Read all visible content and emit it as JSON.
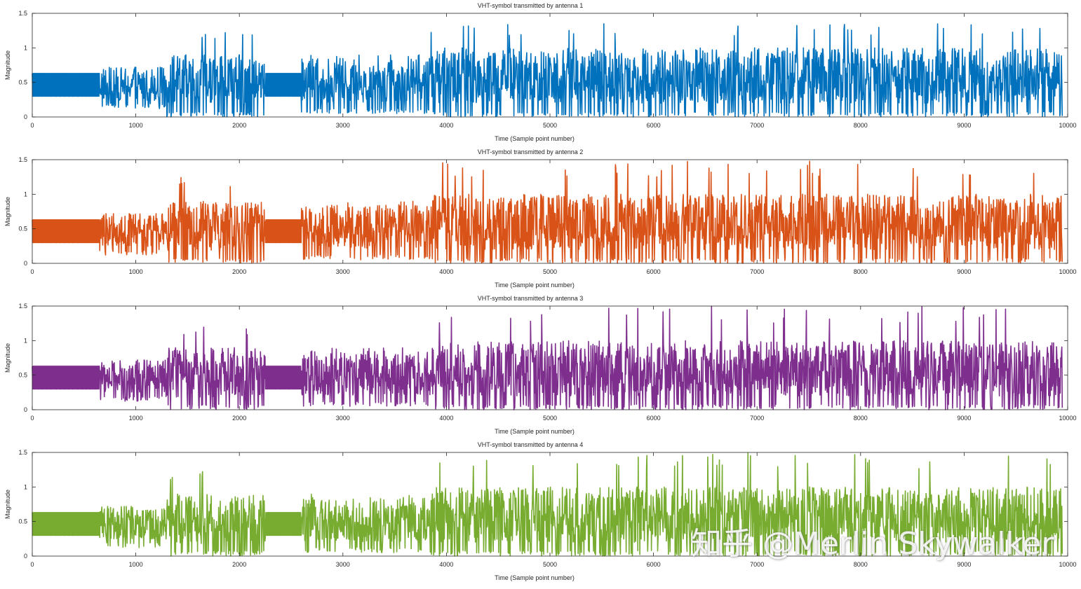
{
  "watermark": "知乎 @Merlin Skywalker",
  "chart_data": [
    {
      "type": "line",
      "title": "VHT-symbol transmitted by antenna 1",
      "xlabel": "Time (Sample point number)",
      "ylabel": "Magnitude",
      "xlim": [
        0,
        10000
      ],
      "ylim": [
        0,
        1.5
      ],
      "xticks": [
        "0",
        "1000",
        "2000",
        "3000",
        "4000",
        "5000",
        "6000",
        "7000",
        "8000",
        "9000",
        "10000"
      ],
      "yticks": [
        "0",
        "0.5",
        "1",
        "1.5"
      ],
      "grid": false,
      "color": "#0072BD",
      "series": [
        {
          "x_range": [
            0,
            9950
          ],
          "segments": [
            {
              "x": [
                0,
                650
              ],
              "style": "periodic",
              "low": 0.3,
              "high": 0.63
            },
            {
              "x": [
                650,
                1300
              ],
              "style": "noise",
              "low": 0.12,
              "high": 0.72,
              "peak": 0.72
            },
            {
              "x": [
                1300,
                2250
              ],
              "style": "noise",
              "low": 0.0,
              "high": 0.9,
              "peak": 1.25
            },
            {
              "x": [
                2250,
                2600
              ],
              "style": "periodic",
              "low": 0.3,
              "high": 0.63
            },
            {
              "x": [
                2600,
                3850
              ],
              "style": "noise",
              "low": 0.05,
              "high": 0.85,
              "peak": 0.9
            },
            {
              "x": [
                3850,
                9950
              ],
              "style": "noise",
              "low": 0.0,
              "high": 1.0,
              "peak": 1.35
            }
          ]
        }
      ]
    },
    {
      "type": "line",
      "title": "VHT-symbol transmitted by antenna 2",
      "xlabel": "Time (Sample point number)",
      "ylabel": "Magnitude",
      "xlim": [
        0,
        10000
      ],
      "ylim": [
        0,
        1.5
      ],
      "xticks": [
        "0",
        "1000",
        "2000",
        "3000",
        "4000",
        "5000",
        "6000",
        "7000",
        "8000",
        "9000",
        "10000"
      ],
      "yticks": [
        "0",
        "0.5",
        "1",
        "1.5"
      ],
      "grid": false,
      "color": "#D95319",
      "series": [
        {
          "x_range": [
            0,
            9950
          ],
          "segments": [
            {
              "x": [
                0,
                650
              ],
              "style": "periodic",
              "low": 0.3,
              "high": 0.63
            },
            {
              "x": [
                650,
                1300
              ],
              "style": "noise",
              "low": 0.12,
              "high": 0.72,
              "peak": 0.72
            },
            {
              "x": [
                1300,
                2250
              ],
              "style": "noise",
              "low": 0.0,
              "high": 0.9,
              "peak": 1.25
            },
            {
              "x": [
                2250,
                2600
              ],
              "style": "periodic",
              "low": 0.3,
              "high": 0.63
            },
            {
              "x": [
                2600,
                3850
              ],
              "style": "noise",
              "low": 0.05,
              "high": 0.85,
              "peak": 0.9
            },
            {
              "x": [
                3850,
                9950
              ],
              "style": "noise",
              "low": 0.0,
              "high": 1.0,
              "peak": 1.48
            }
          ]
        }
      ]
    },
    {
      "type": "line",
      "title": "VHT-symbol transmitted by antenna 3",
      "xlabel": "Time (Sample point number)",
      "ylabel": "Magnitude",
      "xlim": [
        0,
        10000
      ],
      "ylim": [
        0,
        1.5
      ],
      "xticks": [
        "0",
        "1000",
        "2000",
        "3000",
        "4000",
        "5000",
        "6000",
        "7000",
        "8000",
        "9000",
        "10000"
      ],
      "yticks": [
        "0",
        "0.5",
        "1",
        "1.5"
      ],
      "grid": false,
      "color": "#7E2F8E",
      "series": [
        {
          "x_range": [
            0,
            9950
          ],
          "segments": [
            {
              "x": [
                0,
                650
              ],
              "style": "periodic",
              "low": 0.3,
              "high": 0.63
            },
            {
              "x": [
                650,
                1300
              ],
              "style": "noise",
              "low": 0.12,
              "high": 0.72,
              "peak": 0.72
            },
            {
              "x": [
                1300,
                2250
              ],
              "style": "noise",
              "low": 0.0,
              "high": 0.9,
              "peak": 1.22
            },
            {
              "x": [
                2250,
                2600
              ],
              "style": "periodic",
              "low": 0.3,
              "high": 0.63
            },
            {
              "x": [
                2600,
                3850
              ],
              "style": "noise",
              "low": 0.05,
              "high": 0.85,
              "peak": 0.9
            },
            {
              "x": [
                3850,
                9950
              ],
              "style": "noise",
              "low": 0.0,
              "high": 1.0,
              "peak": 1.5
            }
          ]
        }
      ]
    },
    {
      "type": "line",
      "title": "VHT-symbol transmitted by antenna 4",
      "xlabel": "Time (Sample point number)",
      "ylabel": "Magnitude",
      "xlim": [
        0,
        10000
      ],
      "ylim": [
        0,
        1.5
      ],
      "xticks": [
        "0",
        "1000",
        "2000",
        "3000",
        "4000",
        "5000",
        "6000",
        "7000",
        "8000",
        "9000",
        "10000"
      ],
      "yticks": [
        "0",
        "0.5",
        "1",
        "1.5"
      ],
      "grid": false,
      "color": "#77AC30",
      "series": [
        {
          "x_range": [
            0,
            9950
          ],
          "segments": [
            {
              "x": [
                0,
                650
              ],
              "style": "periodic",
              "low": 0.3,
              "high": 0.63
            },
            {
              "x": [
                650,
                1300
              ],
              "style": "noise",
              "low": 0.12,
              "high": 0.72,
              "peak": 0.72
            },
            {
              "x": [
                1300,
                2250
              ],
              "style": "noise",
              "low": 0.0,
              "high": 0.9,
              "peak": 1.25
            },
            {
              "x": [
                2250,
                2600
              ],
              "style": "periodic",
              "low": 0.3,
              "high": 0.63
            },
            {
              "x": [
                2600,
                3850
              ],
              "style": "noise",
              "low": 0.05,
              "high": 0.85,
              "peak": 0.9
            },
            {
              "x": [
                3850,
                9950
              ],
              "style": "noise",
              "low": 0.0,
              "high": 1.0,
              "peak": 1.5
            }
          ]
        }
      ]
    }
  ]
}
